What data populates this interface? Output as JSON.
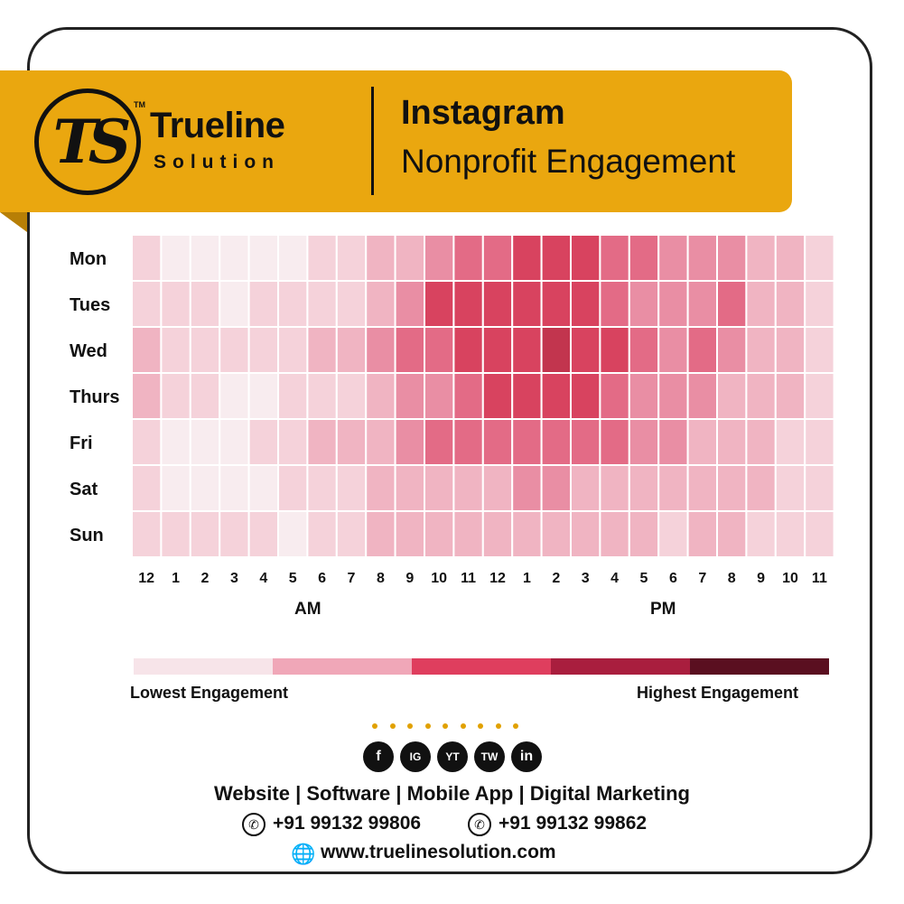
{
  "header": {
    "logo_mark": "TS",
    "trademark": "TM",
    "brand_name": "Trueline",
    "brand_sub": "Solution",
    "title_line1": "Instagram",
    "title_line2": "Nonprofit Engagement"
  },
  "chart_data": {
    "type": "heatmap",
    "rows": [
      "Mon",
      "Tues",
      "Wed",
      "Thurs",
      "Fri",
      "Sat",
      "Sun"
    ],
    "x": [
      "12",
      "1",
      "2",
      "3",
      "4",
      "5",
      "6",
      "7",
      "8",
      "9",
      "10",
      "11",
      "12",
      "1",
      "2",
      "3",
      "4",
      "5",
      "6",
      "7",
      "8",
      "9",
      "10",
      "11"
    ],
    "xgroups": [
      "AM",
      "PM"
    ],
    "scale": {
      "low_label": "Lowest Engagement",
      "high_label": "Highest Engagement",
      "levels": 5
    },
    "values": [
      [
        1,
        0,
        0,
        0,
        0,
        0,
        1,
        1,
        2,
        2,
        3,
        4,
        4,
        5,
        5,
        5,
        4,
        4,
        3,
        3,
        3,
        2,
        2,
        1
      ],
      [
        1,
        1,
        1,
        0,
        1,
        1,
        1,
        1,
        2,
        3,
        5,
        5,
        5,
        5,
        5,
        5,
        4,
        3,
        3,
        3,
        4,
        2,
        2,
        1
      ],
      [
        2,
        1,
        1,
        1,
        1,
        1,
        2,
        2,
        3,
        4,
        4,
        5,
        5,
        5,
        6,
        5,
        5,
        4,
        3,
        4,
        3,
        2,
        2,
        1
      ],
      [
        2,
        1,
        1,
        0,
        0,
        1,
        1,
        1,
        2,
        3,
        3,
        4,
        5,
        5,
        5,
        5,
        4,
        3,
        3,
        3,
        2,
        2,
        2,
        1
      ],
      [
        1,
        0,
        0,
        0,
        1,
        1,
        2,
        2,
        2,
        3,
        4,
        4,
        4,
        4,
        4,
        4,
        4,
        3,
        3,
        2,
        2,
        2,
        1,
        1
      ],
      [
        1,
        0,
        0,
        0,
        0,
        1,
        1,
        1,
        2,
        2,
        2,
        2,
        2,
        3,
        3,
        2,
        2,
        2,
        2,
        2,
        2,
        2,
        1,
        1
      ],
      [
        1,
        1,
        1,
        1,
        1,
        0,
        1,
        1,
        2,
        2,
        2,
        2,
        2,
        2,
        2,
        2,
        2,
        2,
        1,
        2,
        2,
        1,
        1,
        1
      ]
    ]
  },
  "colors": {
    "scale": [
      "#f8ecef",
      "#f5d2da",
      "#f0b4c2",
      "#e98ea4",
      "#e36b86",
      "#d8435f",
      "#c2354e",
      "#8f2038",
      "#5c0f22"
    ],
    "legend": [
      "#f7e4e9",
      "#f0a7b8",
      "#df3e5e",
      "#a91e3e",
      "#5a0f20"
    ],
    "banner": "#eaa70f",
    "accent_dots": "#e1a100"
  },
  "footer": {
    "social": [
      "f",
      "IG",
      "YT",
      "TW",
      "in"
    ],
    "services": "Website  |  Software  |  Mobile App  |  Digital Marketing",
    "phone1": "+91 99132 99806",
    "phone2": "+91 99132 99862",
    "website": "www.truelinesolution.com"
  }
}
